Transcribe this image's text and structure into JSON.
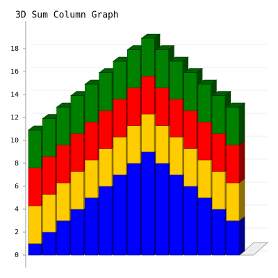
{
  "chart_data": {
    "type": "bar3d_stacked",
    "title": "3D Sum Column Graph",
    "categories": [
      null,
      null,
      null,
      null,
      null,
      null,
      null,
      null,
      null,
      null,
      null,
      null,
      null,
      null,
      null
    ],
    "series": [
      {
        "color": "#0000ff",
        "values": [
          1,
          2,
          3,
          4,
          5,
          6,
          7,
          8,
          9,
          8,
          7,
          6,
          5,
          4,
          3
        ]
      },
      {
        "color": "#ffcc00",
        "values": [
          3.3,
          3.3,
          3.3,
          3.3,
          3.3,
          3.3,
          3.3,
          3.3,
          3.3,
          3.3,
          3.3,
          3.3,
          3.3,
          3.3,
          3.3
        ]
      },
      {
        "color": "#ff0000",
        "values": [
          3.3,
          3.3,
          3.3,
          3.3,
          3.3,
          3.3,
          3.3,
          3.3,
          3.3,
          3.3,
          3.3,
          3.3,
          3.3,
          3.3,
          3.3
        ]
      },
      {
        "color": "#008000",
        "values": [
          3.3,
          3.3,
          3.3,
          3.3,
          3.3,
          3.3,
          3.3,
          3.3,
          3.3,
          3.3,
          3.3,
          3.3,
          3.3,
          3.3,
          3.3
        ]
      }
    ],
    "ylim": [
      0,
      20
    ],
    "yticks": [
      0,
      2,
      4,
      6,
      8,
      10,
      12,
      14,
      16,
      18
    ],
    "grid": true
  }
}
